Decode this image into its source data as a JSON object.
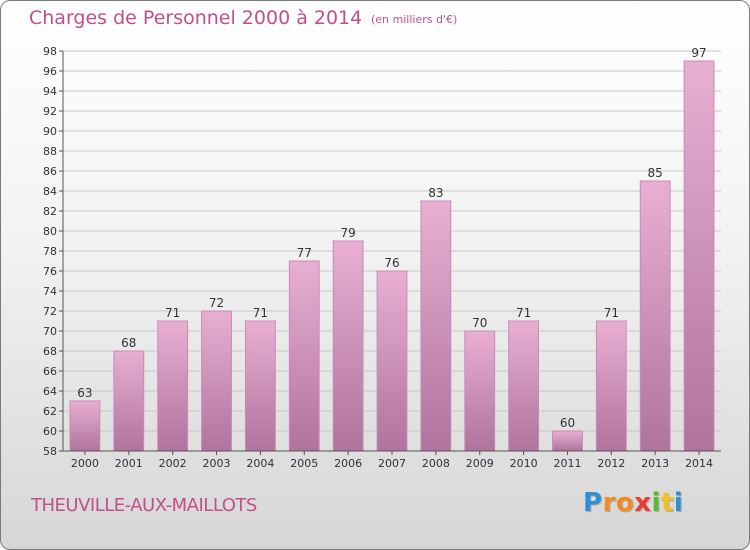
{
  "chart_data": {
    "type": "bar",
    "title": "Charges de Personnel 2000 à 2014",
    "subtitle": "(en milliers d'€)",
    "categories": [
      "2000",
      "2001",
      "2002",
      "2003",
      "2004",
      "2005",
      "2006",
      "2007",
      "2008",
      "2009",
      "2010",
      "2011",
      "2012",
      "2013",
      "2014"
    ],
    "values": [
      63,
      68,
      71,
      72,
      71,
      77,
      79,
      76,
      83,
      70,
      71,
      60,
      71,
      85,
      97
    ],
    "ylim": [
      58,
      98
    ],
    "ytick_step": 2,
    "grid": true,
    "colors": {
      "bar_light": "#e9afd2",
      "bar_dark": "#b0739d",
      "bar_edge": "#c98bb3",
      "grid": "#c8c8c8"
    }
  },
  "footer": {
    "commune": "THEUVILLE-AUX-MAILLOTS",
    "logo_letters": [
      "P",
      "r",
      "o",
      "x",
      "i",
      "t",
      "i"
    ],
    "logo_colors": [
      "#2f8fd6",
      "#f28c1f",
      "#f28c1f",
      "#e63d2f",
      "#5fb92f",
      "#f2c01f",
      "#2f8fd6"
    ]
  }
}
